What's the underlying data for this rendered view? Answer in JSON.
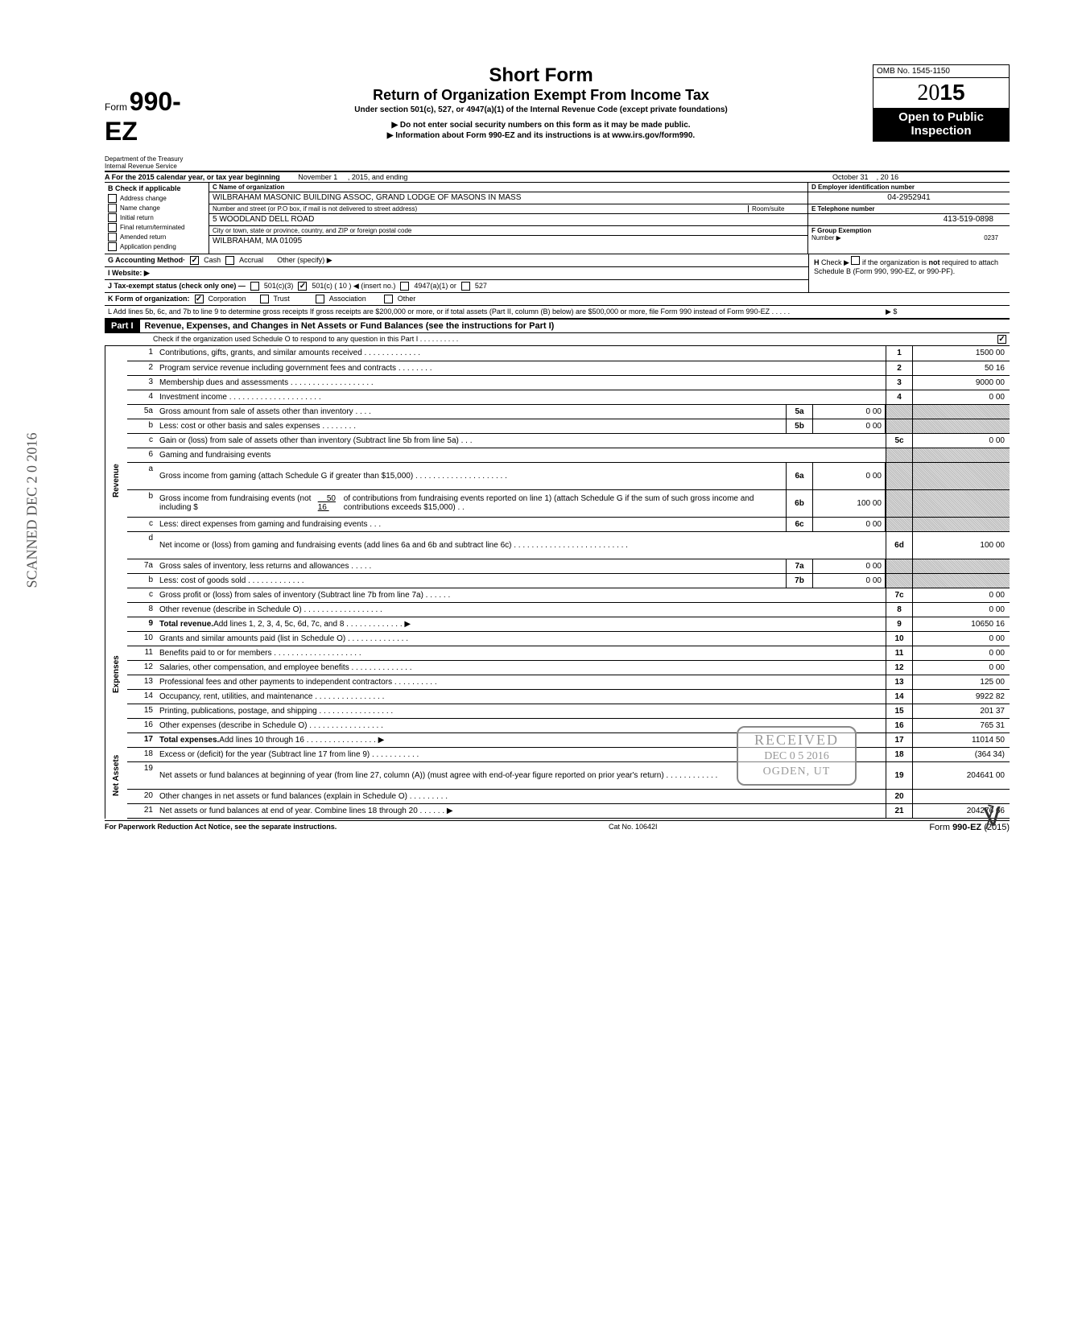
{
  "form_number_prefix": "Form",
  "form_number": "990-EZ",
  "title_1": "Short Form",
  "title_2": "Return of Organization Exempt From Income Tax",
  "subtitle_1": "Under section 501(c), 527, or 4947(a)(1) of the Internal Revenue Code (except private foundations)",
  "arrow_1": "▶ Do not enter social security numbers on this form as it may be made public.",
  "arrow_2": "▶ Information about Form 990-EZ and its instructions is at www.irs.gov/form990.",
  "omb": "OMB No. 1545-1150",
  "year_prefix": "20",
  "year_bold": "15",
  "open_public": "Open to Public Inspection",
  "dept_1": "Department of the Treasury",
  "dept_2": "Internal Revenue Service",
  "section_A_1": "A  For the 2015 calendar year, or tax year beginning",
  "section_A_month": "November 1",
  "section_A_2": ", 2015, and ending",
  "section_A_month2": "October 31",
  "section_A_3": ", 20",
  "section_A_yr": "16",
  "B_header": "B  Check if applicable",
  "B_items": [
    "Address change",
    "Name change",
    "Initial return",
    "Final return/terminated",
    "Amended return",
    "Application pending"
  ],
  "C_label": "C  Name of organization",
  "C_name": "WILBRAHAM MASONIC BUILDING ASSOC, GRAND LODGE OF MASONS IN MASS",
  "C_street_label": "Number and street (or P.O  box, if mail is not delivered to street address)",
  "C_room_label": "Room/suite",
  "C_street": "5 WOODLAND DELL ROAD",
  "C_city_label": "City or town, state or province, country, and ZIP or foreign postal code",
  "C_city": "WILBRAHAM, MA  01095",
  "D_label": "D Employer identification number",
  "D_val": "04-2952941",
  "E_label": "E Telephone number",
  "E_val": "413-519-0898",
  "F_label": "F Group Exemption",
  "F_label2": "Number  ▶",
  "F_val": "0237",
  "G_label": "G  Accounting Method·",
  "G_cash": "Cash",
  "G_accrual": "Accrual",
  "G_other": "Other (specify)  ▶",
  "H_text": "H  Check  ▶       if the organization is not required to attach Schedule B (Form 990, 990-EZ, or 990-PF).",
  "I_label": "I   Website: ▶",
  "J_label": "J  Tax-exempt status (check only one) —",
  "J_501c3": "501(c)(3)",
  "J_501c": "501(c) (   10   ) ◀  (insert no.)",
  "J_4947": "4947(a)(1) or",
  "J_527": "527",
  "K_label": "K  Form of organization:",
  "K_corp": "Corporation",
  "K_trust": "Trust",
  "K_assoc": "Association",
  "K_other": "Other",
  "L_text": "L  Add lines 5b, 6c, and 7b to line 9 to determine gross receipts  If gross receipts are $200,000 or more, or if total assets (Part II, column (B) below) are $500,000 or more, file Form 990 instead of Form 990-EZ .    .    .     .          .",
  "L_arrow": "▶    $",
  "part1": "Part I",
  "part1_title": "Revenue, Expenses, and Changes in Net Assets or Fund Balances (see the instructions for Part I)",
  "part1_check": "Check if the organization used Schedule O to respond to any question in this Part I .    .    .    .    .    .    .    .    .    .",
  "side_revenue": "Revenue",
  "side_expenses": "Expenses",
  "side_netassets": "Net Assets",
  "rows": {
    "1": {
      "n": "1",
      "t": "Contributions, gifts, grants, and similar amounts received .    .    .    .    .    .    .    .    .    .    .    .    .",
      "rn": "1",
      "rv": "1500 00"
    },
    "2": {
      "n": "2",
      "t": "Program service revenue including government fees and contracts      .     .     .     .     .     .     .     .",
      "rn": "2",
      "rv": "50 16"
    },
    "3": {
      "n": "3",
      "t": "Membership dues and assessments .    .    .    .    .    .    .    .    .    .    .    .    .    .    .    .    .    .    .",
      "rn": "3",
      "rv": "9000 00"
    },
    "4": {
      "n": "4",
      "t": "Investment income       .     .     .     .     .     .     .     .     .     .     .     .     .     .     .     .     .     .     .     .     .",
      "rn": "4",
      "rv": "0 00"
    },
    "5a": {
      "n": "5a",
      "t": "Gross amount from sale of assets other than inventory     .    .    .    .",
      "mn": "5a",
      "mv": "0 00"
    },
    "5b": {
      "n": "b",
      "t": "Less: cost or other basis and sales expenses .    .    .    .    .    .    .    .",
      "mn": "5b",
      "mv": "0 00"
    },
    "5c": {
      "n": "c",
      "t": "Gain or (loss) from sale of assets other than inventory (Subtract line 5b from line 5a) .    .    .",
      "rn": "5c",
      "rv": "0 00"
    },
    "6": {
      "n": "6",
      "t": "Gaming and fundraising events"
    },
    "6a": {
      "n": "a",
      "t": "Gross income from gaming (attach Schedule G if greater than $15,000) .   .   .   .   .   .   .   .   .   .   .   .   .   .   .   .   .   .   .   .   .",
      "mn": "6a",
      "mv": "0 00"
    },
    "6b": {
      "n": "b",
      "t": "Gross income from fundraising events (not including  $",
      "t2": "of contributions from fundraising events reported on line 1) (attach Schedule G if the sum of such gross income and contributions exceeds $15,000) .   .",
      "bv": "50 16",
      "mn": "6b",
      "mv": "100 00"
    },
    "6c": {
      "n": "c",
      "t": "Less: direct expenses from gaming and fundraising events     .    .    .",
      "mn": "6c",
      "mv": "0 00"
    },
    "6d": {
      "n": "d",
      "t": "Net income or (loss) from gaming and fundraising events (add lines 6a and 6b and subtract line 6c)     .    .    .    .    .    .    .    .    .    .    .    .    .    .    .    .    .    .    .    .    .    .    .    .    .    .",
      "rn": "6d",
      "rv": "100 00"
    },
    "7a": {
      "n": "7a",
      "t": "Gross sales of inventory, less returns and allowances   .    .    .    .    .",
      "mn": "7a",
      "mv": "0 00"
    },
    "7b": {
      "n": "b",
      "t": "Less: cost of goods sold      .    .    .    .    .    .    .    .    .    .    .    .    .",
      "mn": "7b",
      "mv": "0 00"
    },
    "7c": {
      "n": "c",
      "t": "Gross profit or (loss) from sales of inventory (Subtract line 7b from line 7a)    .    .    .    .    .    .",
      "rn": "7c",
      "rv": "0 00"
    },
    "8": {
      "n": "8",
      "t": "Other revenue (describe in Schedule O) .    .    .    .    .    .    .    .    .    .    .    .    .    .    .    .    .    .",
      "rn": "8",
      "rv": "0 00"
    },
    "9": {
      "n": "9",
      "t": "Total revenue. Add lines 1, 2, 3, 4, 5c, 6d, 7c, and 8    .    .    .    .    .    .    .    .    .    .    .    .    .   ▶",
      "rn": "9",
      "rv": "10650 16",
      "bold": true
    },
    "10": {
      "n": "10",
      "t": "Grants and similar amounts paid (list in Schedule O)    .    .    .    .    .    .    .    .    .    .    .    .    .    .",
      "rn": "10",
      "rv": "0 00"
    },
    "11": {
      "n": "11",
      "t": "Benefits paid to or for members    .    .    .    .    .    .    .    .    .    .    .    .    .    .    .    .    .    .    .    .",
      "rn": "11",
      "rv": "0 00"
    },
    "12": {
      "n": "12",
      "t": "Salaries, other compensation, and employee benefits   .    .    .    .    .    .    .    .    .    .    .    .    .    .",
      "rn": "12",
      "rv": "0 00"
    },
    "13": {
      "n": "13",
      "t": "Professional fees and other payments to independent contractors .    .    .    .    .    .    .    .    .    .",
      "rn": "13",
      "rv": "125 00"
    },
    "14": {
      "n": "14",
      "t": "Occupancy, rent, utilities, and maintenance     .    .    .    .    .    .    .    .    .    .    .    .    .    .    .    .",
      "rn": "14",
      "rv": "9922 82"
    },
    "15": {
      "n": "15",
      "t": "Printing, publications, postage, and shipping .    .    .    .    .    .    .    .    .    .    .    .    .    .    .    .    .",
      "rn": "15",
      "rv": "201 37"
    },
    "16": {
      "n": "16",
      "t": "Other expenses (describe in Schedule O)   .    .    .    .    .    .    .    .    .    .    .    .    .    .    .    .    .",
      "rn": "16",
      "rv": "765 31"
    },
    "17": {
      "n": "17",
      "t": "Total expenses. Add lines 10 through 16    .    .    .    .    .    .    .    .    .    .    .    .    .    .    .    .   ▶",
      "rn": "17",
      "rv": "11014 50",
      "bold": true
    },
    "18": {
      "n": "18",
      "t": "Excess or (deficit) for the year (Subtract line 17 from line 9)    .    .    .    .    .    .    .    .    .    .    .",
      "rn": "18",
      "rv": "(364 34)"
    },
    "19": {
      "n": "19",
      "t": "Net assets or fund balances at beginning of year (from line 27, column (A)) (must agree with end-of-year figure reported on prior year's return)     .     .     .     .     .     .     .     .     .     .     .     .",
      "rn": "19",
      "rv": "204641 00"
    },
    "20": {
      "n": "20",
      "t": "Other changes in net assets or fund balances (explain in Schedule O) .    .    .    .    .    .    .    .    .",
      "rn": "20",
      "rv": ""
    },
    "21": {
      "n": "21",
      "t": "Net assets or fund balances at end of year. Combine lines 18 through 20     .    .    .    .    .    .   ▶",
      "rn": "21",
      "rv": "204276 66"
    }
  },
  "footer_left": "For Paperwork Reduction Act Notice, see the separate instructions.",
  "footer_mid": "Cat  No. 10642I",
  "footer_right_pre": "Form ",
  "footer_right_form": "990-EZ",
  "footer_right_yr": " (2015)",
  "stamp_rotated": "SCANNED DEC 2 0 2016",
  "received_1": "RECEIVED",
  "received_2": "DEC  0 5  2016",
  "received_3": "OGDEN, UT"
}
